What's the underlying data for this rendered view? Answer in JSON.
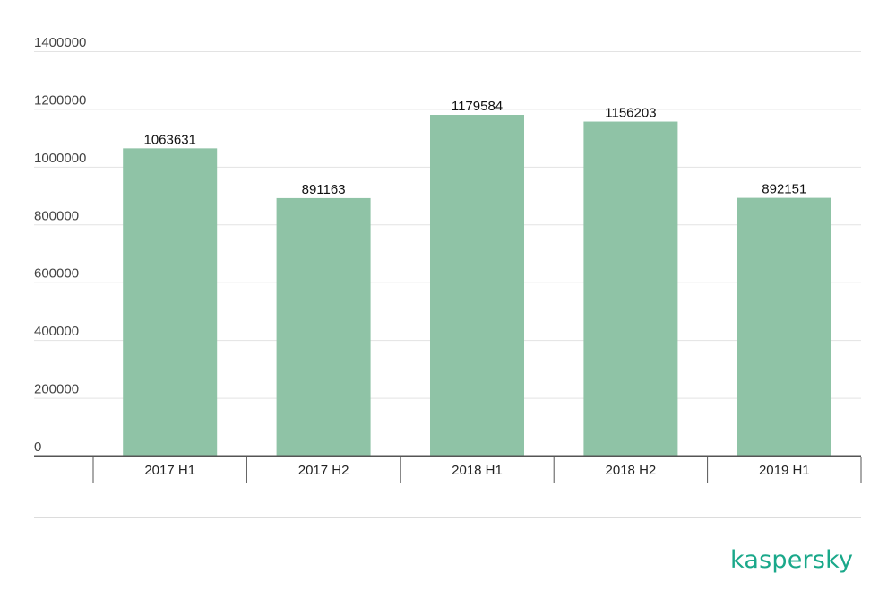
{
  "chart_data": {
    "type": "bar",
    "categories": [
      "2017 H1",
      "2017 H2",
      "2018 H1",
      "2018 H2",
      "2019 H1"
    ],
    "values": [
      1063631,
      891163,
      1179584,
      1156203,
      892151
    ],
    "data_labels": [
      "1063631",
      "891163",
      "1179584",
      "1156203",
      "892151"
    ],
    "y_ticks": [
      "0",
      "200000",
      "400000",
      "600000",
      "800000",
      "1000000",
      "1200000",
      "1400000"
    ],
    "ylim": [
      0,
      1400000
    ],
    "grid": true,
    "legend": "none",
    "bar_color": "#8fc3a6",
    "title": "",
    "xlabel": "",
    "ylabel": ""
  },
  "brand": {
    "logo_text": "kaspersky",
    "color": "#1aa88a"
  }
}
